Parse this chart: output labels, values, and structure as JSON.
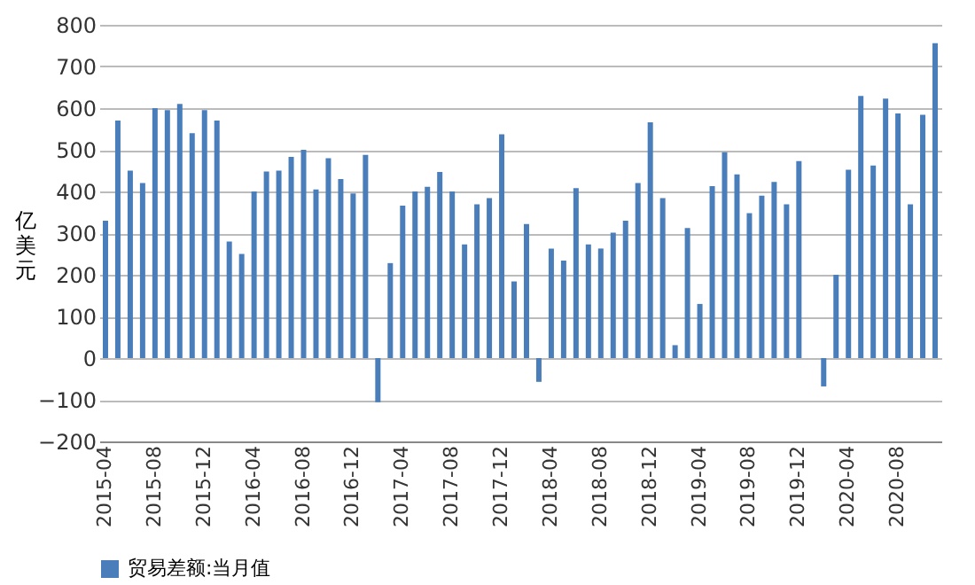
{
  "chart_data": {
    "type": "bar",
    "ylabel": "亿美元",
    "categories": [
      "2015-04",
      null,
      null,
      null,
      "2015-08",
      null,
      null,
      null,
      "2015-12",
      null,
      null,
      null,
      "2016-04",
      null,
      null,
      null,
      "2016-08",
      null,
      null,
      null,
      "2016-12",
      null,
      null,
      null,
      "2017-04",
      null,
      null,
      null,
      "2017-08",
      null,
      null,
      null,
      "2017-12",
      null,
      null,
      null,
      "2018-04",
      null,
      null,
      null,
      "2018-08",
      null,
      null,
      null,
      "2018-12",
      null,
      null,
      null,
      "2019-04",
      null,
      null,
      null,
      "2019-08",
      null,
      null,
      null,
      "2019-12",
      null,
      null,
      null,
      "2020-04",
      null,
      null,
      null,
      "2020-08",
      null,
      null,
      null
    ],
    "series": [
      {
        "name": "贸易差额:当月值",
        "color": "#4a7ebb",
        "values": [
          330,
          570,
          450,
          420,
          600,
          595,
          610,
          540,
          595,
          570,
          280,
          250,
          400,
          448,
          450,
          483,
          500,
          405,
          480,
          430,
          395,
          488,
          -106,
          228,
          366,
          400,
          411,
          447,
          400,
          273,
          369,
          384,
          537,
          184,
          322,
          -57,
          263,
          234,
          408,
          273,
          263,
          301,
          330,
          420,
          566,
          384,
          31,
          312,
          130,
          413,
          494,
          441,
          348,
          390,
          423,
          369,
          473,
          null,
          -68,
          200,
          452,
          629,
          462,
          623,
          587,
          369,
          584,
          756
        ]
      }
    ],
    "ylim": [
      -200,
      800
    ],
    "yticks": [
      -200,
      -100,
      0,
      100,
      200,
      300,
      400,
      500,
      600,
      700,
      800
    ],
    "grid": "y",
    "legend": "bottom"
  }
}
